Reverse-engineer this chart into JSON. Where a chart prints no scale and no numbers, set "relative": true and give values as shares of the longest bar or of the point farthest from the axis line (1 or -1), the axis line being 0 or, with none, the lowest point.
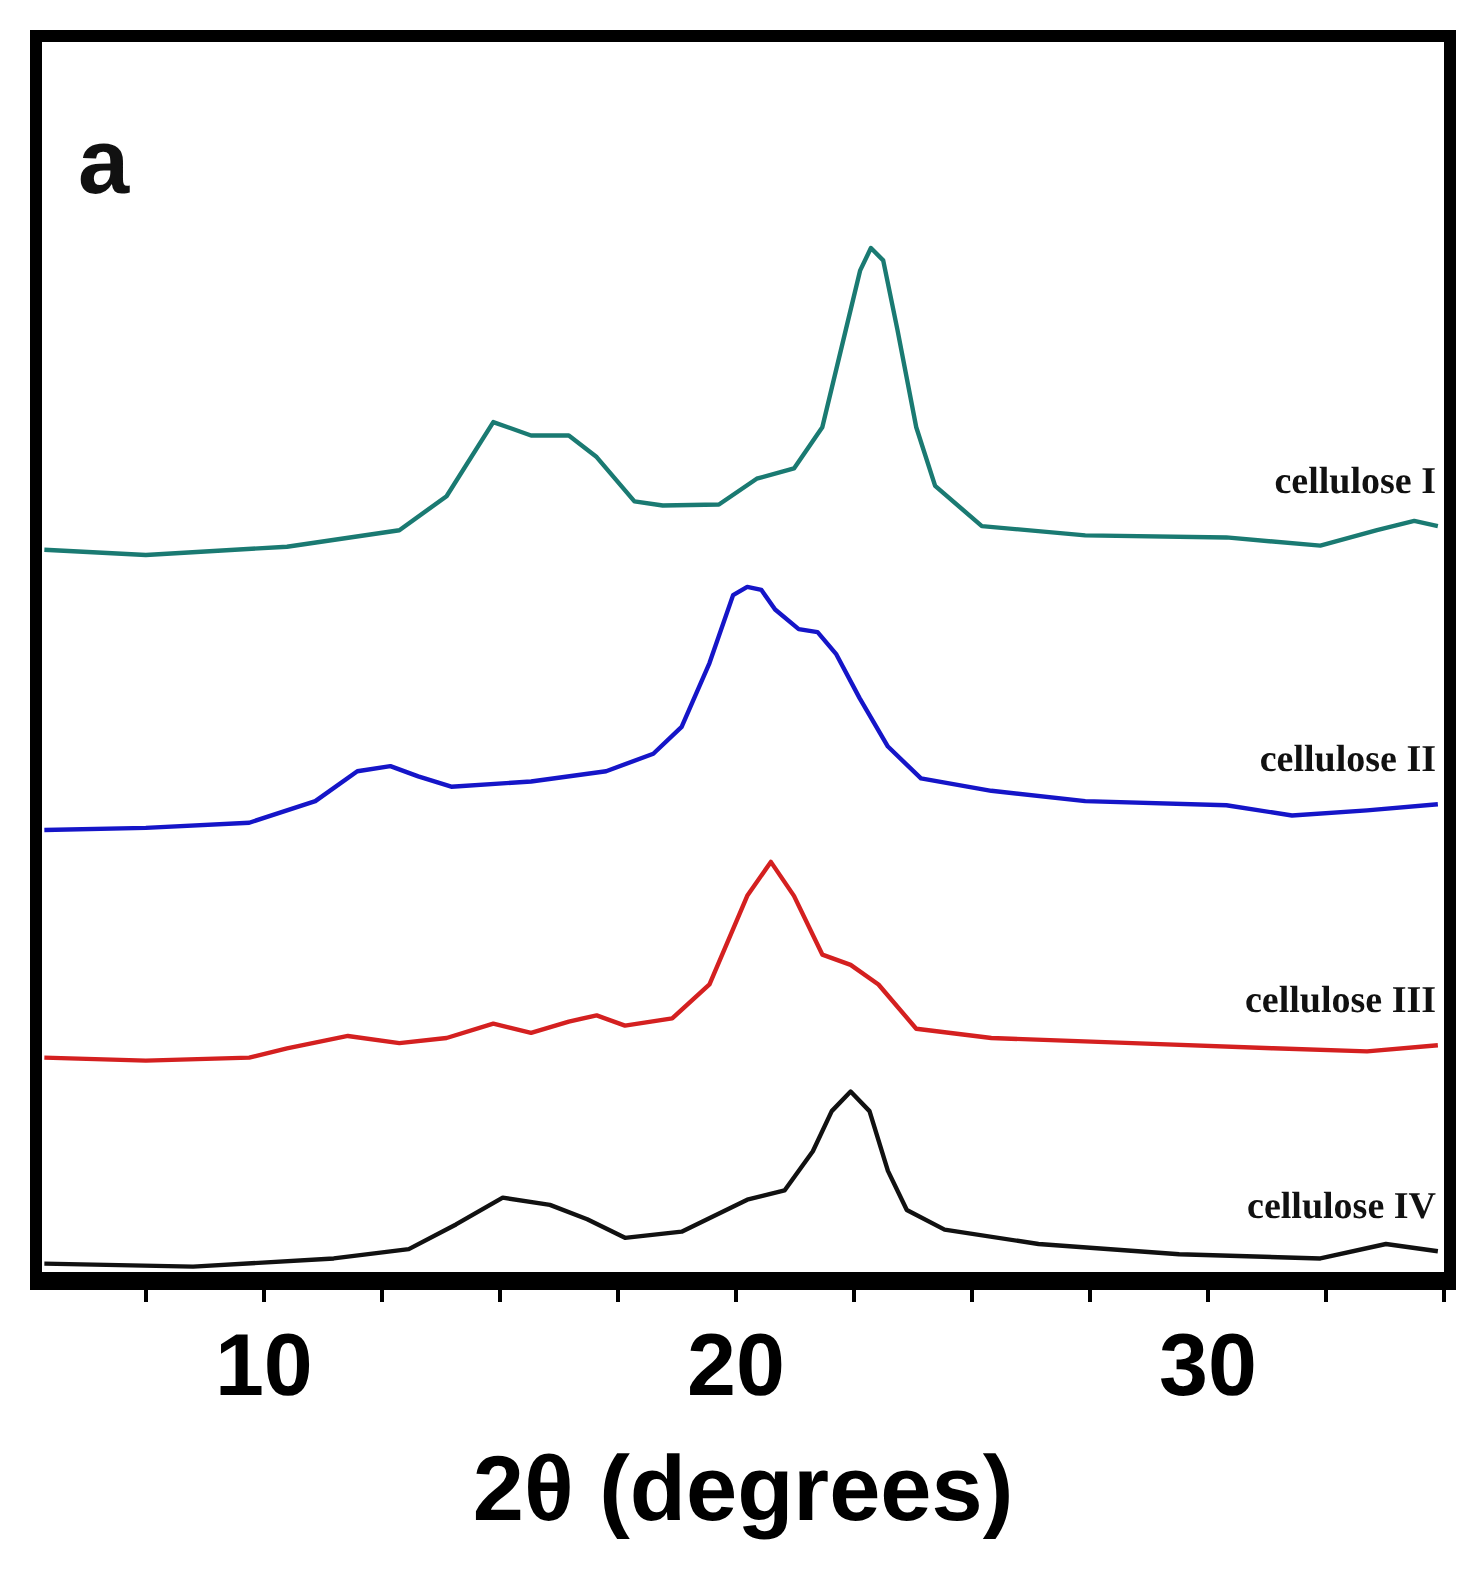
{
  "chart_data": {
    "type": "line",
    "relative": true,
    "xlabel": "2θ (degrees)",
    "annotations": [
      "a"
    ],
    "xlim": [
      5.3,
      35
    ],
    "xticks": [
      {
        "value": 7.5,
        "label": null
      },
      10,
      {
        "value": 12.5,
        "label": null
      },
      {
        "value": 15,
        "label": null
      },
      {
        "value": 17.5,
        "label": null
      },
      20,
      {
        "value": 22.5,
        "label": null
      },
      {
        "value": 25,
        "label": null
      },
      {
        "value": 27.5,
        "label": null
      },
      30,
      {
        "value": 32.5,
        "label": null
      },
      {
        "value": 35,
        "label": null
      }
    ],
    "grid": false,
    "legend": false,
    "marker": "none",
    "line_style": "solid",
    "series": [
      {
        "name": "cellulose I",
        "color": "#1a7a72",
        "x": [
          5.35,
          7.5,
          10.49,
          12.87,
          13.87,
          14.86,
          15.66,
          16.46,
          17.05,
          17.85,
          18.45,
          19.64,
          20.44,
          21.23,
          21.83,
          22.33,
          22.63,
          22.86,
          23.12,
          23.42,
          23.82,
          24.22,
          25.21,
          27.4,
          30.39,
          32.38,
          33.58,
          34.37,
          34.87
        ],
        "values": [
          0.707,
          0.702,
          0.71,
          0.726,
          0.759,
          0.831,
          0.818,
          0.818,
          0.797,
          0.754,
          0.75,
          0.751,
          0.776,
          0.786,
          0.826,
          0.921,
          0.978,
          1.0,
          0.988,
          0.921,
          0.826,
          0.769,
          0.73,
          0.721,
          0.719,
          0.711,
          0.726,
          0.735,
          0.73
        ]
      },
      {
        "name": "cellulose II",
        "color": "#1515c8",
        "x": [
          5.35,
          7.5,
          9.69,
          11.09,
          11.98,
          12.68,
          13.27,
          13.97,
          15.66,
          17.25,
          18.25,
          18.85,
          19.44,
          19.94,
          20.24,
          20.54,
          20.83,
          21.33,
          21.73,
          22.12,
          22.62,
          23.22,
          23.92,
          25.41,
          27.4,
          30.39,
          31.78,
          33.37,
          34.87
        ],
        "values": [
          0.435,
          0.437,
          0.442,
          0.463,
          0.492,
          0.497,
          0.487,
          0.477,
          0.482,
          0.492,
          0.509,
          0.535,
          0.597,
          0.663,
          0.671,
          0.668,
          0.649,
          0.63,
          0.627,
          0.606,
          0.563,
          0.516,
          0.485,
          0.473,
          0.463,
          0.459,
          0.449,
          0.454,
          0.46
        ]
      },
      {
        "name": "cellulose III",
        "color": "#d42020",
        "x": [
          5.35,
          7.5,
          9.69,
          10.49,
          11.78,
          12.87,
          13.87,
          14.86,
          15.66,
          16.46,
          17.05,
          17.65,
          18.65,
          19.44,
          20.24,
          20.74,
          21.23,
          21.83,
          22.43,
          23.02,
          23.82,
          25.41,
          28.4,
          31.38,
          33.37,
          34.87
        ],
        "values": [
          0.214,
          0.211,
          0.214,
          0.223,
          0.235,
          0.228,
          0.233,
          0.247,
          0.238,
          0.249,
          0.255,
          0.245,
          0.252,
          0.285,
          0.371,
          0.404,
          0.371,
          0.314,
          0.304,
          0.285,
          0.242,
          0.233,
          0.228,
          0.223,
          0.22,
          0.226
        ]
      },
      {
        "name": "cellulose IV",
        "color": "#111111",
        "x": [
          5.35,
          8.5,
          11.48,
          13.07,
          14.07,
          15.06,
          16.06,
          16.85,
          17.65,
          18.85,
          20.24,
          21.03,
          21.63,
          22.03,
          22.43,
          22.83,
          23.22,
          23.62,
          24.42,
          26.41,
          29.39,
          32.38,
          33.77,
          34.87
        ],
        "values": [
          0.014,
          0.011,
          0.019,
          0.028,
          0.052,
          0.078,
          0.071,
          0.057,
          0.039,
          0.045,
          0.076,
          0.085,
          0.123,
          0.162,
          0.181,
          0.162,
          0.104,
          0.066,
          0.047,
          0.033,
          0.023,
          0.019,
          0.033,
          0.026
        ]
      }
    ]
  }
}
